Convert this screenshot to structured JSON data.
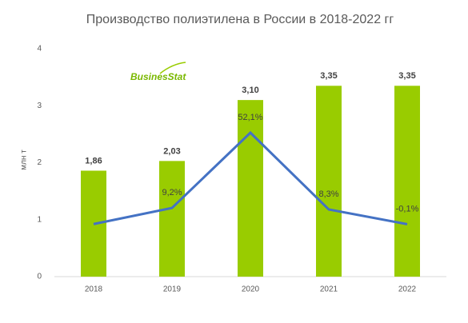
{
  "chart_data": {
    "type": "bar",
    "title": "Производство полиэтилена в России в 2018-2022 гг",
    "logo": "BusinesStat",
    "y_label": "млн т",
    "categories": [
      "2018",
      "2019",
      "2020",
      "2021",
      "2022"
    ],
    "series": [
      {
        "type": "bar",
        "color": "#99cc00",
        "values": [
          1.86,
          2.03,
          3.1,
          3.35,
          3.35
        ],
        "value_labels": [
          "1,86",
          "2,03",
          "3,10",
          "3,35",
          "3,35"
        ]
      },
      {
        "type": "line",
        "axis": "y2",
        "color": "#4472c4",
        "values": [
          0,
          9.2,
          52.1,
          8.3,
          -0.1
        ],
        "value_labels": [
          null,
          "9,2%",
          "52,1%",
          "8,3%",
          "-0,1%"
        ]
      }
    ],
    "ylim": [
      0,
      4
    ],
    "yticks": [
      0,
      1,
      2,
      3,
      4
    ],
    "y2lim": [
      -30,
      100
    ],
    "grid": false
  }
}
